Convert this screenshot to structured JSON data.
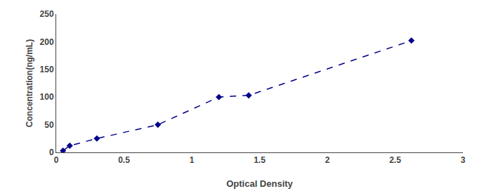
{
  "chart_data": {
    "type": "line",
    "x": [
      0.05,
      0.1,
      0.3,
      0.75,
      1.2,
      1.42,
      2.62
    ],
    "values": [
      3,
      12,
      25,
      50,
      100,
      103,
      202
    ],
    "color": "#00008B",
    "marker": "diamond",
    "line_style": "dashed",
    "xlabel": "Optical Density",
    "ylabel": "Concentration(ng/mL)",
    "xlim": [
      0,
      3
    ],
    "ylim": [
      0,
      250
    ],
    "xticks": [
      0,
      0.5,
      1,
      1.5,
      2,
      2.5,
      3
    ],
    "yticks": [
      0,
      50,
      100,
      150,
      200,
      250
    ],
    "grid": false
  }
}
